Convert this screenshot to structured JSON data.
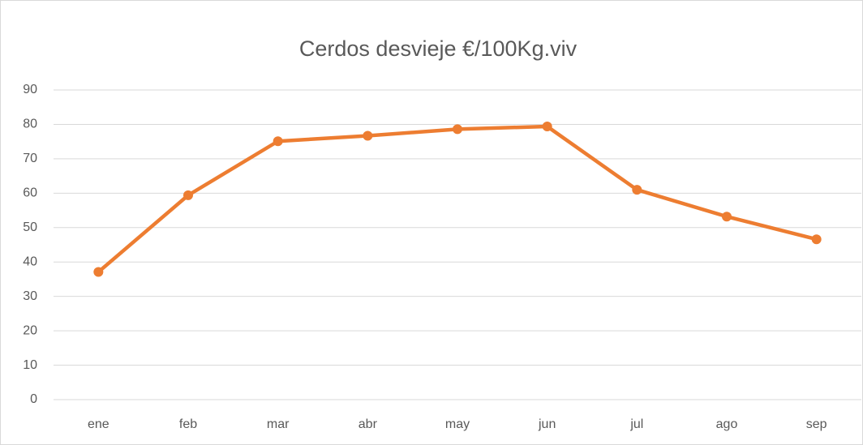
{
  "chart_data": {
    "type": "line",
    "title": "Cerdos desvieje €/100Kg.viv",
    "categories": [
      "ene",
      "feb",
      "mar",
      "abr",
      "may",
      "jun",
      "jul",
      "ago",
      "sep"
    ],
    "series": [
      {
        "name": "Cerdos desvieje",
        "color": "#ed7d31",
        "values": [
          37.1,
          59.4,
          75.1,
          76.7,
          78.6,
          79.4,
          61.0,
          53.2,
          46.6
        ]
      }
    ],
    "ylim": [
      0,
      90
    ],
    "yticks": [
      0,
      10,
      20,
      30,
      40,
      50,
      60,
      70,
      80,
      90
    ],
    "grid": true
  }
}
